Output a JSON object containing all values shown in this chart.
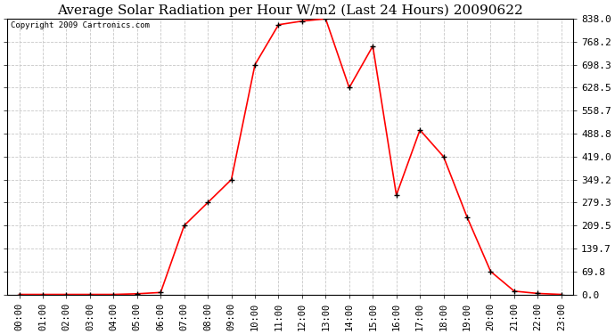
{
  "title": "Average Solar Radiation per Hour W/m2 (Last 24 Hours) 20090622",
  "copyright": "Copyright 2009 Cartronics.com",
  "hours": [
    "00:00",
    "01:00",
    "02:00",
    "03:00",
    "04:00",
    "05:00",
    "06:00",
    "07:00",
    "08:00",
    "09:00",
    "10:00",
    "11:00",
    "12:00",
    "13:00",
    "14:00",
    "15:00",
    "16:00",
    "17:00",
    "18:00",
    "19:00",
    "20:00",
    "21:00",
    "22:00",
    "23:00"
  ],
  "values": [
    0.0,
    0.0,
    0.0,
    0.0,
    0.0,
    2.0,
    6.0,
    209.5,
    279.3,
    349.2,
    698.3,
    820.0,
    831.0,
    838.0,
    628.5,
    755.0,
    302.0,
    500.0,
    419.0,
    235.0,
    69.8,
    10.0,
    3.0,
    0.0
  ],
  "line_color": "#ff0000",
  "marker_color": "#000000",
  "bg_color": "#ffffff",
  "grid_color": "#c8c8c8",
  "yticks": [
    0.0,
    69.8,
    139.7,
    209.5,
    279.3,
    349.2,
    419.0,
    488.8,
    558.7,
    628.5,
    698.3,
    768.2,
    838.0
  ],
  "ylim": [
    0.0,
    838.0
  ],
  "title_fontsize": 11,
  "copyright_fontsize": 6.5,
  "tick_fontsize": 7.5,
  "ytick_fontsize": 8
}
